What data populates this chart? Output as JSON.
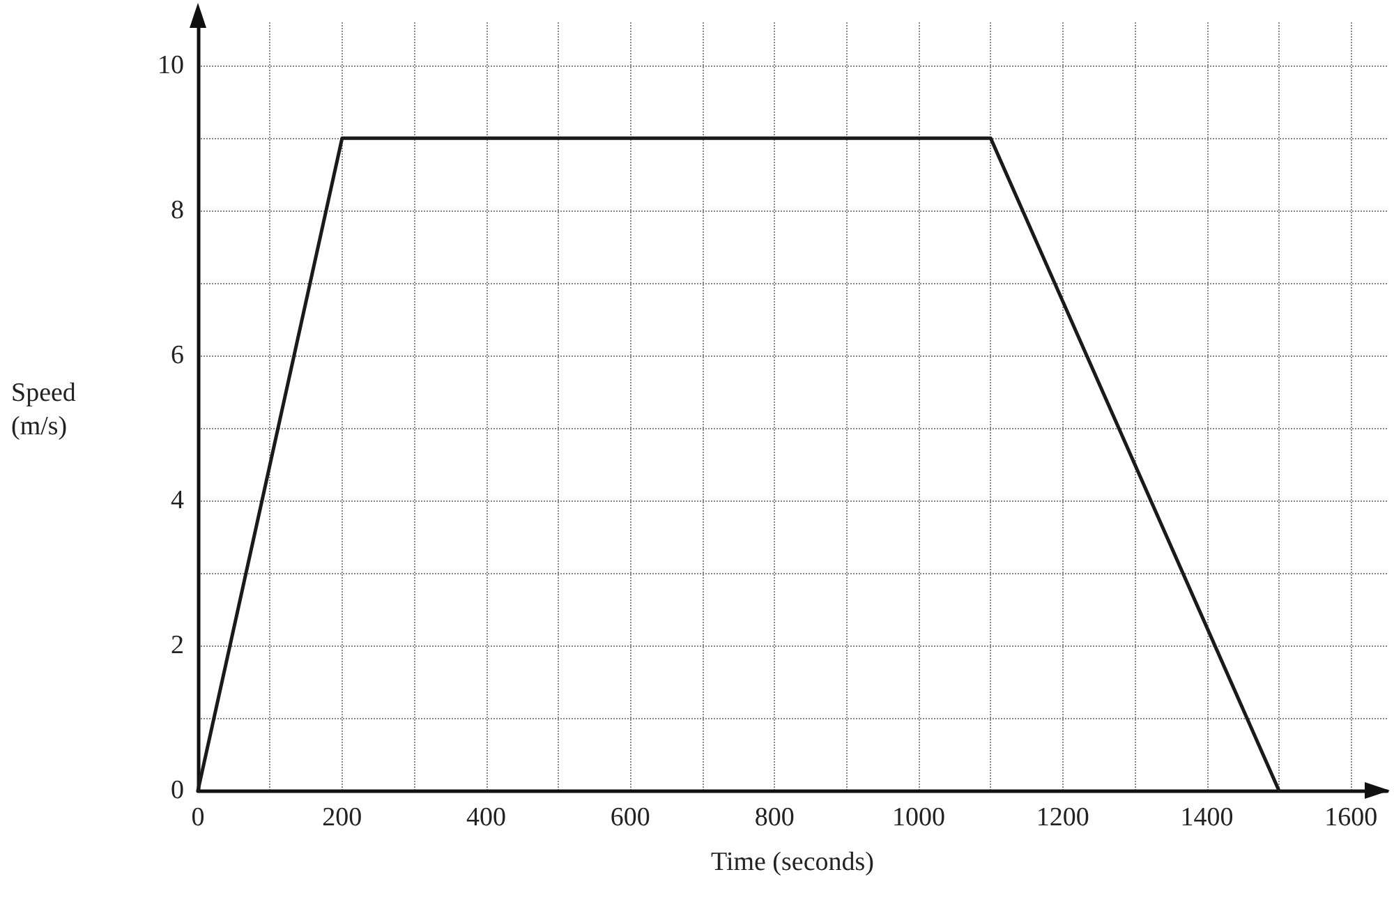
{
  "chart_data": {
    "type": "line",
    "xlabel": "Time (seconds)",
    "ylabel": "Speed (m/s)",
    "x": [
      0,
      200,
      1100,
      1500
    ],
    "series": [
      {
        "color": "#1a1a1a",
        "values": [
          0,
          9,
          9,
          0
        ]
      }
    ],
    "xlim": [
      0,
      1650
    ],
    "xticks": [
      0,
      {
        "value": 100,
        "label": null
      },
      200,
      {
        "value": 300,
        "label": null
      },
      400,
      {
        "value": 500,
        "label": null
      },
      600,
      {
        "value": 700,
        "label": null
      },
      800,
      {
        "value": 900,
        "label": null
      },
      1000,
      {
        "value": 1100,
        "label": null
      },
      1200,
      {
        "value": 1300,
        "label": null
      },
      1400,
      {
        "value": 1500,
        "label": null
      },
      1600
    ],
    "ylim": [
      0,
      10.6
    ],
    "yticks": [
      0,
      {
        "value": 1,
        "label": null
      },
      2,
      {
        "value": 3,
        "label": null
      },
      4,
      {
        "value": 5,
        "label": null
      },
      6,
      {
        "value": 7,
        "label": null
      },
      8,
      {
        "value": 9,
        "label": null
      },
      10
    ],
    "grid": true,
    "marker": "none",
    "line_style": "solid"
  }
}
